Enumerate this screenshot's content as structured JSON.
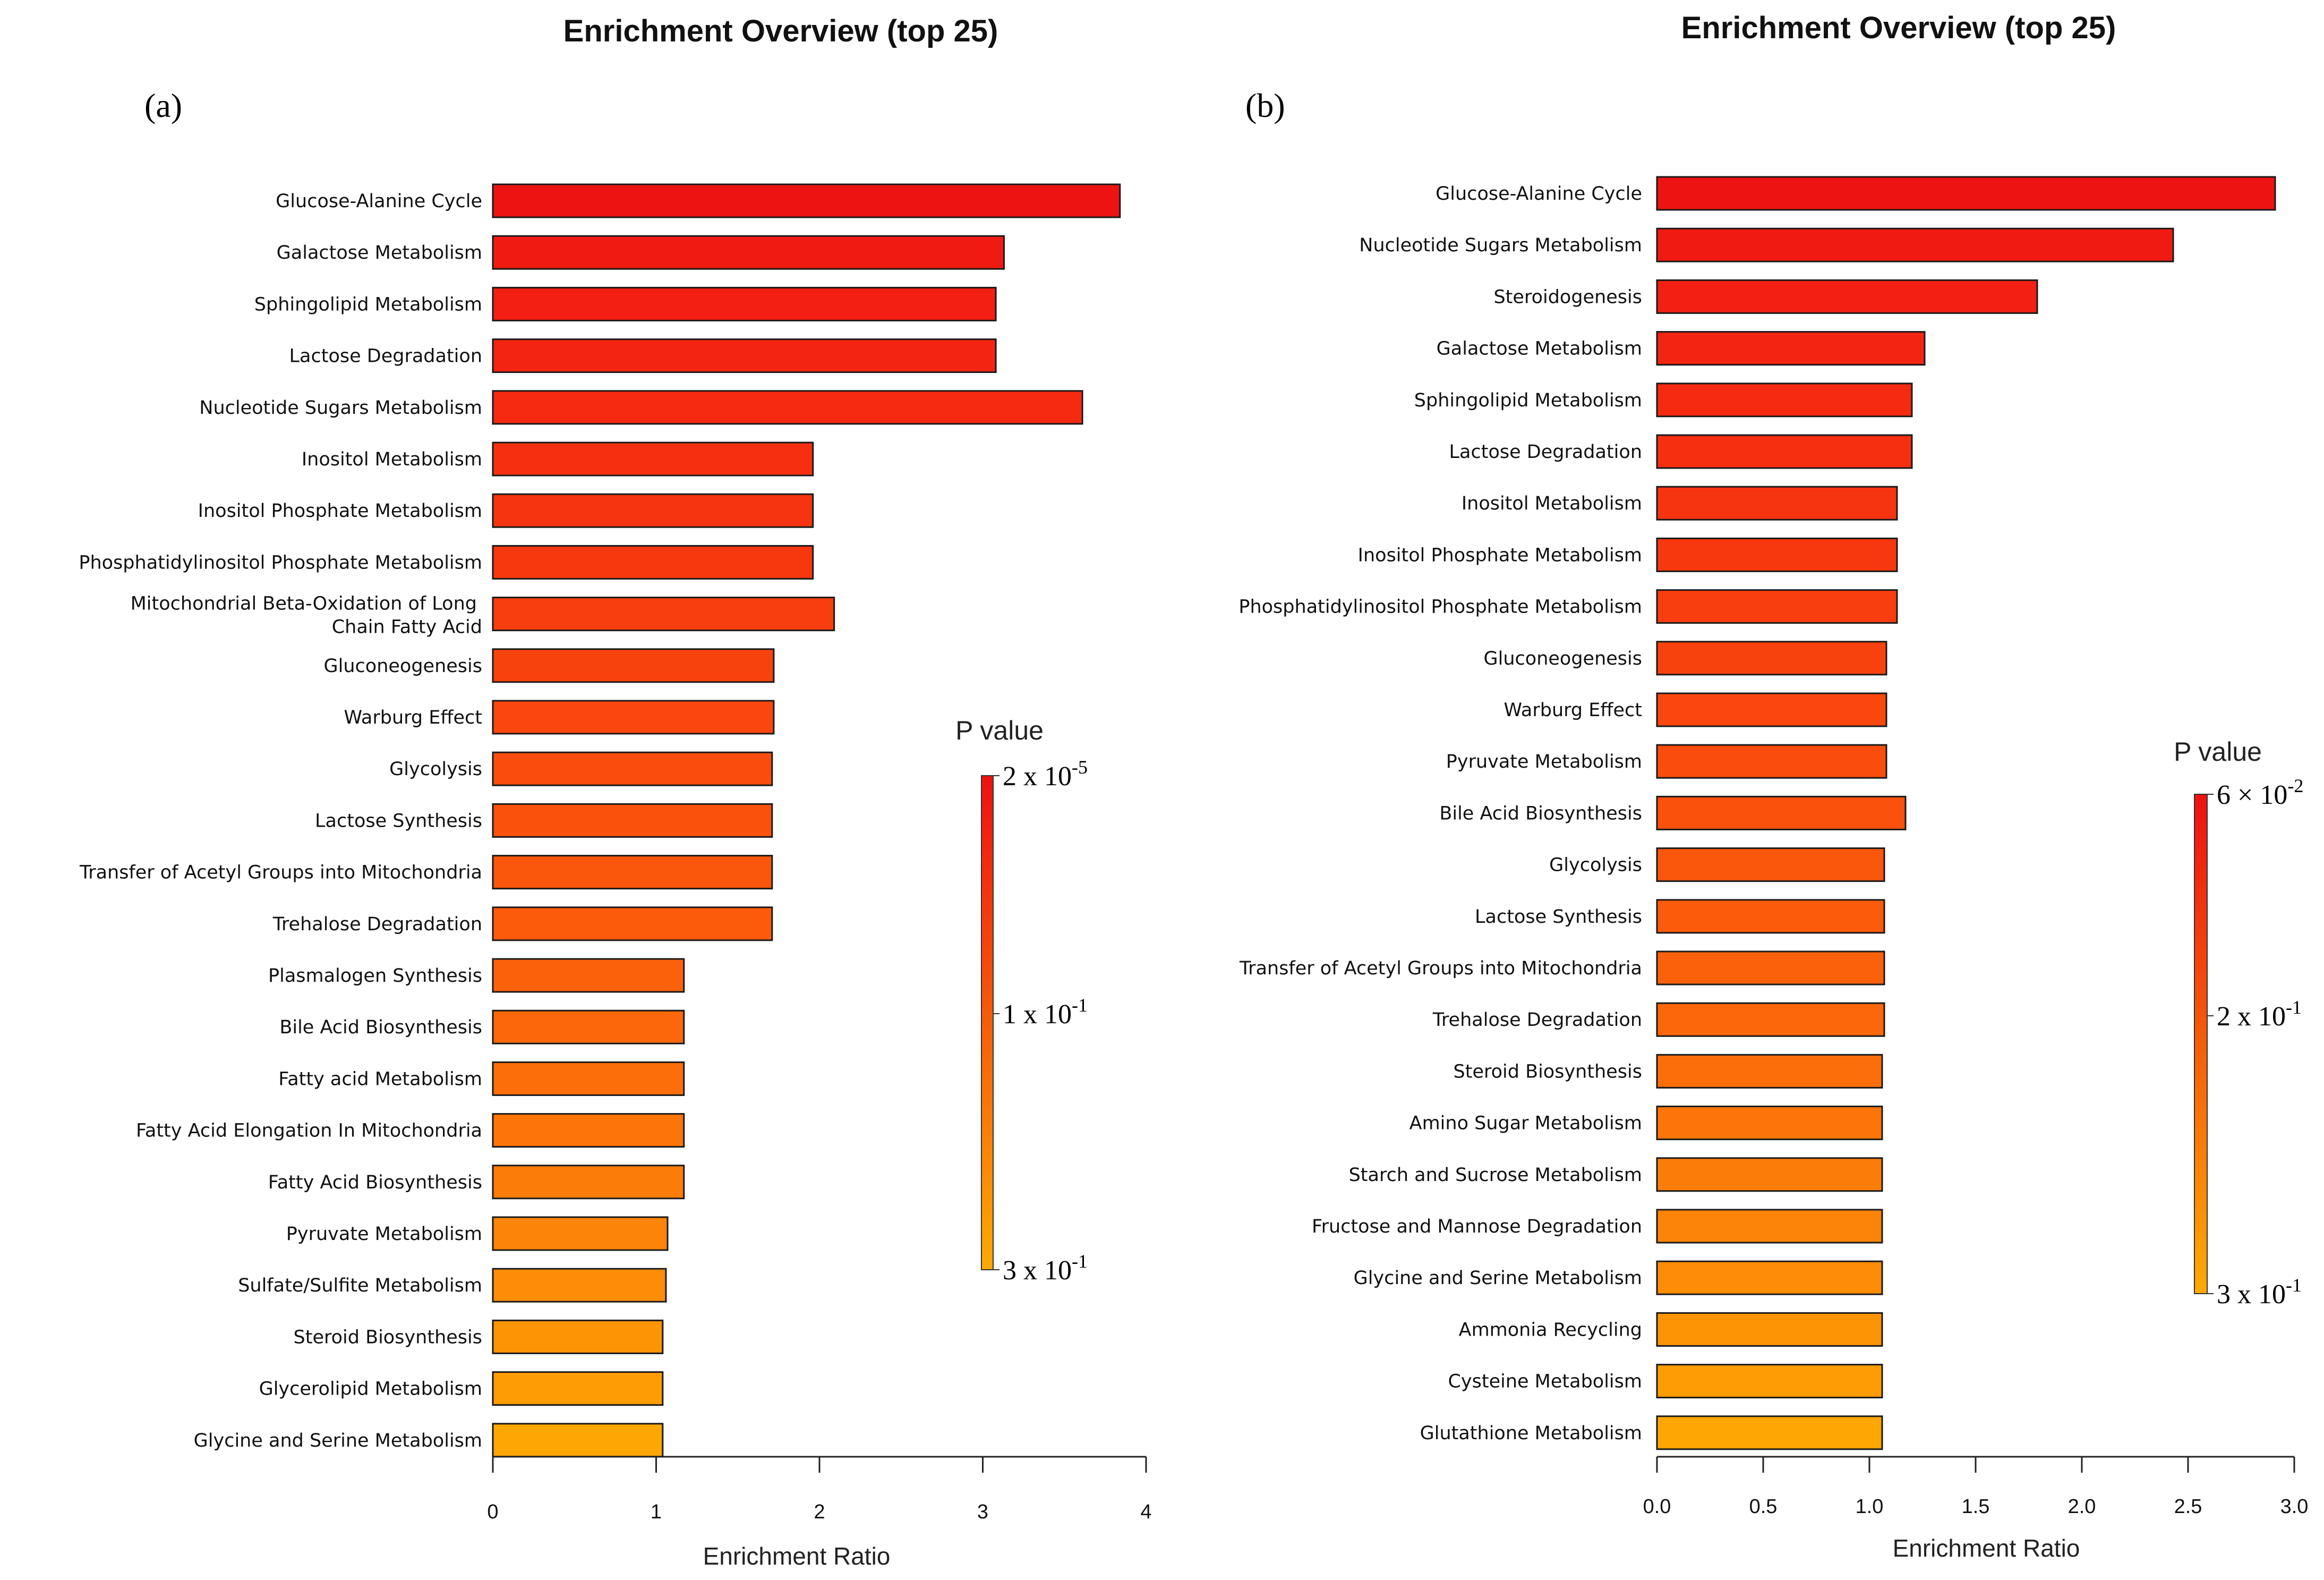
{
  "chart_data": [
    {
      "type": "bar",
      "orientation": "horizontal",
      "panel_label": "(a)",
      "title": "Enrichment Overview (top 25)",
      "xlabel": "Enrichment Ratio",
      "ylabel": "",
      "xlim": [
        0,
        4
      ],
      "xticks": [
        "0",
        "1",
        "2",
        "3",
        "4"
      ],
      "categories": [
        "Glucose-Alanine Cycle",
        "Galactose Metabolism",
        "Sphingolipid Metabolism",
        "Lactose Degradation",
        "Nucleotide Sugars Metabolism",
        "Inositol Metabolism",
        "Inositol Phosphate Metabolism",
        "Phosphatidylinositol Phosphate Metabolism",
        "Mitochondrial Beta-Oxidation of Long Chain Fatty Acid",
        "Gluconeogenesis",
        "Warburg Effect",
        "Glycolysis",
        "Lactose Synthesis",
        "Transfer of Acetyl Groups into Mitochondria",
        "Trehalose Degradation",
        "Plasmalogen Synthesis",
        "Bile Acid Biosynthesis",
        "Fatty acid Metabolism",
        "Fatty Acid Elongation In Mitochondria",
        "Fatty Acid Biosynthesis",
        "Pyruvate Metabolism",
        "Sulfate/Sulfite Metabolism",
        "Steroid Biosynthesis",
        "Glycerolipid Metabolism",
        "Glycine and Serine Metabolism"
      ],
      "category_lines": [
        [
          "Glucose-Alanine Cycle"
        ],
        [
          "Galactose Metabolism"
        ],
        [
          "Sphingolipid Metabolism"
        ],
        [
          "Lactose Degradation"
        ],
        [
          "Nucleotide Sugars Metabolism"
        ],
        [
          "Inositol Metabolism"
        ],
        [
          "Inositol Phosphate Metabolism"
        ],
        [
          "Phosphatidylinositol Phosphate Metabolism"
        ],
        [
          "Mitochondrial Beta-Oxidation of Long",
          "Chain Fatty Acid"
        ],
        [
          "Gluconeogenesis"
        ],
        [
          "Warburg Effect"
        ],
        [
          "Glycolysis"
        ],
        [
          "Lactose Synthesis"
        ],
        [
          "Transfer of Acetyl Groups into Mitochondria"
        ],
        [
          "Trehalose Degradation"
        ],
        [
          "Plasmalogen Synthesis"
        ],
        [
          "Bile Acid Biosynthesis"
        ],
        [
          "Fatty acid Metabolism"
        ],
        [
          "Fatty Acid Elongation In Mitochondria"
        ],
        [
          "Fatty Acid Biosynthesis"
        ],
        [
          "Pyruvate Metabolism"
        ],
        [
          "Sulfate/Sulfite Metabolism"
        ],
        [
          "Steroid Biosynthesis"
        ],
        [
          "Glycerolipid Metabolism"
        ],
        [
          "Glycine and Serine Metabolism"
        ]
      ],
      "values": [
        3.84,
        3.13,
        3.08,
        3.08,
        3.61,
        1.96,
        1.96,
        1.96,
        2.09,
        1.72,
        1.72,
        1.71,
        1.71,
        1.71,
        1.71,
        1.17,
        1.17,
        1.17,
        1.17,
        1.17,
        1.07,
        1.06,
        1.04,
        1.04,
        1.04
      ],
      "colors": [
        "#ee1313",
        "#f11a12",
        "#f21f12",
        "#f32412",
        "#f52a10",
        "#f62f10",
        "#f63410",
        "#f7380f",
        "#f83d0e",
        "#f8420e",
        "#f9470d",
        "#f94c0d",
        "#fa510c",
        "#fa560c",
        "#fb5b0b",
        "#fb610b",
        "#fb670a",
        "#fc6e0a",
        "#fc7509",
        "#fc7c09",
        "#fc8408",
        "#fd8c07",
        "#fd9406",
        "#fd9c05",
        "#fea604"
      ],
      "legend": {
        "title": "P value",
        "ticks": [
          {
            "base": "2 x 10",
            "exp": "-5"
          },
          {
            "base": "1 x 10",
            "exp": "-1"
          },
          {
            "base": "3 x 10",
            "exp": "-1"
          }
        ],
        "gradient_top": "#ee1111",
        "gradient_bottom": "#fdaa03"
      }
    },
    {
      "type": "bar",
      "orientation": "horizontal",
      "panel_label": "(b)",
      "title": "Enrichment Overview (top 25)",
      "xlabel": "Enrichment Ratio",
      "ylabel": "",
      "xlim": [
        0,
        3.0
      ],
      "xticks": [
        "0.0",
        "0.5",
        "1.0",
        "1.5",
        "2.0",
        "2.5",
        "3.0"
      ],
      "categories": [
        "Glucose-Alanine Cycle",
        "Nucleotide Sugars Metabolism",
        "Steroidogenesis",
        "Galactose Metabolism",
        "Sphingolipid Metabolism",
        "Lactose Degradation",
        "Inositol Metabolism",
        "Inositol Phosphate Metabolism",
        "Phosphatidylinositol Phosphate Metabolism",
        "Gluconeogenesis",
        "Warburg Effect",
        "Pyruvate Metabolism",
        "Bile Acid Biosynthesis",
        "Glycolysis",
        "Lactose Synthesis",
        "Transfer of Acetyl Groups into Mitochondria",
        "Trehalose Degradation",
        "Steroid Biosynthesis",
        "Amino Sugar Metabolism",
        "Starch and Sucrose Metabolism",
        "Fructose and Mannose Degradation",
        "Glycine and Serine Metabolism",
        "Ammonia Recycling",
        "Cysteine Metabolism",
        "Glutathione Metabolism"
      ],
      "category_lines": [
        [
          "Glucose-Alanine Cycle"
        ],
        [
          "Nucleotide Sugars Metabolism"
        ],
        [
          "Steroidogenesis"
        ],
        [
          "Galactose Metabolism"
        ],
        [
          "Sphingolipid Metabolism"
        ],
        [
          "Lactose Degradation"
        ],
        [
          "Inositol Metabolism"
        ],
        [
          "Inositol Phosphate Metabolism"
        ],
        [
          "Phosphatidylinositol Phosphate Metabolism"
        ],
        [
          "Gluconeogenesis"
        ],
        [
          "Warburg Effect"
        ],
        [
          "Pyruvate Metabolism"
        ],
        [
          "Bile Acid Biosynthesis"
        ],
        [
          "Glycolysis"
        ],
        [
          "Lactose Synthesis"
        ],
        [
          "Transfer of Acetyl Groups into Mitochondria"
        ],
        [
          "Trehalose Degradation"
        ],
        [
          "Steroid Biosynthesis"
        ],
        [
          "Amino Sugar Metabolism"
        ],
        [
          "Starch and Sucrose Metabolism"
        ],
        [
          "Fructose and Mannose Degradation"
        ],
        [
          "Glycine and Serine Metabolism"
        ],
        [
          "Ammonia Recycling"
        ],
        [
          "Cysteine Metabolism"
        ],
        [
          "Glutathione Metabolism"
        ]
      ],
      "values": [
        2.91,
        2.43,
        1.79,
        1.26,
        1.2,
        1.2,
        1.13,
        1.13,
        1.13,
        1.08,
        1.08,
        1.08,
        1.17,
        1.07,
        1.07,
        1.07,
        1.07,
        1.06,
        1.06,
        1.06,
        1.06,
        1.06,
        1.06,
        1.06,
        1.06
      ],
      "colors": [
        "#ee1313",
        "#f11a12",
        "#f21f12",
        "#f32412",
        "#f52a10",
        "#f62f10",
        "#f63410",
        "#f7380f",
        "#f83d0e",
        "#f8420e",
        "#f9470d",
        "#f94c0d",
        "#fa510c",
        "#fa560c",
        "#fb5b0b",
        "#fb610b",
        "#fb670a",
        "#fc6e0a",
        "#fc7509",
        "#fc7c09",
        "#fc8408",
        "#fd8c07",
        "#fd9406",
        "#fd9c05",
        "#fea604"
      ],
      "legend": {
        "title": "P value",
        "ticks": [
          {
            "base": "6 × 10",
            "exp": "-2"
          },
          {
            "base": "2 x 10",
            "exp": "-1"
          },
          {
            "base": "3 x 10",
            "exp": "-1"
          }
        ],
        "gradient_top": "#ee1111",
        "gradient_bottom": "#fdaa03"
      }
    }
  ]
}
